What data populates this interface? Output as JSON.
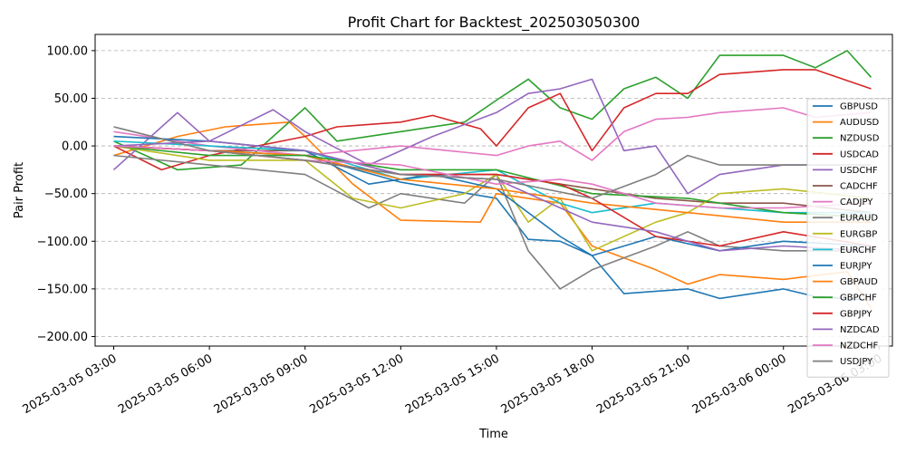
{
  "chart_data": {
    "type": "line",
    "title": "Profit Chart for Backtest_202503050300",
    "xlabel": "Time",
    "ylabel": "Pair Profit",
    "xlim": [
      "2025-03-05 02:25",
      "2025-03-06 03:25"
    ],
    "ylim": [
      -210,
      117
    ],
    "x_ticks": [
      "2025-03-05 03:00",
      "2025-03-05 06:00",
      "2025-03-05 09:00",
      "2025-03-05 12:00",
      "2025-03-05 15:00",
      "2025-03-05 18:00",
      "2025-03-05 21:00",
      "2025-03-06 00:00",
      "2025-03-06 03:00"
    ],
    "x_tick_labels": [
      "2025-03-05 03:00",
      "2025-03-05 06:00",
      "2025-03-05 09:00",
      "2025-03-05 12:00",
      "2025-03-05 15:00",
      "2025-03-05 18:00",
      "2025-03-05 21:00",
      "2025-03-06 00:00",
      "2025-03-06 03:00"
    ],
    "y_ticks": [
      100,
      50,
      0,
      -50,
      -100,
      -150,
      -200
    ],
    "y_tick_labels": [
      "100.00",
      "50.00",
      "0.00",
      "−50.00",
      "−100.00",
      "−150.00",
      "−200.00"
    ],
    "grid": true,
    "legend_position": "right",
    "series": [
      {
        "name": "GBPUSD",
        "color": "#1f77b4",
        "x": [
          "2025-03-05 03:00",
          "2025-03-05 06:00",
          "2025-03-05 09:00",
          "2025-03-05 12:00",
          "2025-03-05 15:00",
          "2025-03-05 16:00",
          "2025-03-05 17:00",
          "2025-03-05 18:00",
          "2025-03-05 19:00",
          "2025-03-05 21:00",
          "2025-03-05 22:00",
          "2025-03-06 00:00",
          "2025-03-06 01:00",
          "2025-03-06 02:45"
        ],
        "values": [
          0,
          -5,
          -10,
          -38,
          -55,
          -98,
          -100,
          -115,
          -155,
          -150,
          -160,
          -150,
          -158,
          -162
        ]
      },
      {
        "name": "AUDUSD",
        "color": "#ff7f0e",
        "x": [
          "2025-03-05 03:00",
          "2025-03-05 05:00",
          "2025-03-05 06:30",
          "2025-03-05 08:30",
          "2025-03-05 09:00",
          "2025-03-05 10:30",
          "2025-03-05 12:00",
          "2025-03-05 14:30",
          "2025-03-05 15:00",
          "2025-03-05 17:00",
          "2025-03-05 18:00",
          "2025-03-05 20:00",
          "2025-03-05 21:00",
          "2025-03-05 22:00",
          "2025-03-06 00:00",
          "2025-03-06 02:00",
          "2025-03-06 02:45"
        ],
        "values": [
          -10,
          10,
          20,
          25,
          10,
          -40,
          -78,
          -80,
          -50,
          -60,
          -105,
          -130,
          -145,
          -135,
          -140,
          -132,
          -170
        ]
      },
      {
        "name": "NZDUSD",
        "color": "#2ca02c",
        "x": [
          "2025-03-05 03:00",
          "2025-03-05 05:00",
          "2025-03-05 07:00",
          "2025-03-05 09:00",
          "2025-03-05 10:00",
          "2025-03-05 12:00",
          "2025-03-05 14:00",
          "2025-03-05 15:00",
          "2025-03-05 16:00",
          "2025-03-05 17:00",
          "2025-03-05 18:00",
          "2025-03-05 19:00",
          "2025-03-05 20:00",
          "2025-03-05 21:00",
          "2025-03-05 22:00",
          "2025-03-06 00:00",
          "2025-03-06 01:00",
          "2025-03-06 02:00",
          "2025-03-06 02:45"
        ],
        "values": [
          5,
          -25,
          -20,
          40,
          5,
          15,
          25,
          48,
          70,
          40,
          28,
          60,
          72,
          50,
          95,
          95,
          82,
          100,
          72
        ]
      },
      {
        "name": "USDCAD",
        "color": "#d62728",
        "x": [
          "2025-03-05 03:00",
          "2025-03-05 04:30",
          "2025-03-05 06:00",
          "2025-03-05 09:00",
          "2025-03-05 10:00",
          "2025-03-05 12:00",
          "2025-03-05 13:00",
          "2025-03-05 14:30",
          "2025-03-05 15:00",
          "2025-03-05 16:00",
          "2025-03-05 17:00",
          "2025-03-05 18:00",
          "2025-03-05 19:00",
          "2025-03-05 20:00",
          "2025-03-05 21:00",
          "2025-03-05 22:00",
          "2025-03-06 00:00",
          "2025-03-06 01:00",
          "2025-03-06 02:45"
        ],
        "values": [
          0,
          -25,
          -10,
          10,
          20,
          25,
          32,
          18,
          0,
          40,
          55,
          -5,
          40,
          55,
          55,
          75,
          80,
          80,
          60
        ]
      },
      {
        "name": "USDCHF",
        "color": "#9467bd",
        "x": [
          "2025-03-05 03:00",
          "2025-03-05 05:00",
          "2025-03-05 06:00",
          "2025-03-05 08:00",
          "2025-03-05 09:00",
          "2025-03-05 11:00",
          "2025-03-05 13:00",
          "2025-03-05 15:00",
          "2025-03-05 16:00",
          "2025-03-05 17:00",
          "2025-03-05 18:00",
          "2025-03-05 19:00",
          "2025-03-05 20:00",
          "2025-03-05 21:00",
          "2025-03-05 22:00",
          "2025-03-06 00:00",
          "2025-03-06 01:00",
          "2025-03-06 02:45"
        ],
        "values": [
          -25,
          35,
          5,
          38,
          15,
          -20,
          10,
          35,
          55,
          60,
          70,
          -5,
          0,
          -50,
          -30,
          -20,
          -20,
          -20
        ]
      },
      {
        "name": "CADCHF",
        "color": "#8c564b",
        "x": [
          "2025-03-05 03:00",
          "2025-03-05 06:00",
          "2025-03-05 09:00",
          "2025-03-05 12:00",
          "2025-03-05 15:00",
          "2025-03-05 18:00",
          "2025-03-05 20:00",
          "2025-03-05 22:00",
          "2025-03-06 00:00",
          "2025-03-06 02:45"
        ],
        "values": [
          0,
          -5,
          -5,
          -30,
          -30,
          -45,
          -55,
          -60,
          -60,
          -70
        ]
      },
      {
        "name": "CADJPY",
        "color": "#e377c2",
        "x": [
          "2025-03-05 03:00",
          "2025-03-05 06:00",
          "2025-03-05 09:00",
          "2025-03-05 12:00",
          "2025-03-05 15:00",
          "2025-03-05 16:00",
          "2025-03-05 17:00",
          "2025-03-05 18:00",
          "2025-03-05 19:00",
          "2025-03-05 20:00",
          "2025-03-05 21:00",
          "2025-03-05 22:00",
          "2025-03-06 00:00",
          "2025-03-06 01:00",
          "2025-03-06 02:45"
        ],
        "values": [
          15,
          0,
          -10,
          0,
          -10,
          0,
          5,
          -15,
          15,
          28,
          30,
          35,
          40,
          30,
          35
        ]
      },
      {
        "name": "EURAUD",
        "color": "#7f7f7f",
        "x": [
          "2025-03-05 03:00",
          "2025-03-05 06:00",
          "2025-03-05 09:00",
          "2025-03-05 11:00",
          "2025-03-05 12:00",
          "2025-03-05 14:00",
          "2025-03-05 15:00",
          "2025-03-05 16:00",
          "2025-03-05 17:00",
          "2025-03-05 18:00",
          "2025-03-05 20:00",
          "2025-03-05 21:00",
          "2025-03-05 22:00",
          "2025-03-06 00:00",
          "2025-03-06 02:45"
        ],
        "values": [
          -10,
          -20,
          -30,
          -65,
          -50,
          -60,
          -30,
          -110,
          -150,
          -130,
          -105,
          -90,
          -105,
          -110,
          -110
        ]
      },
      {
        "name": "EURGBP",
        "color": "#bcbd22",
        "x": [
          "2025-03-05 03:00",
          "2025-03-05 06:00",
          "2025-03-05 09:00",
          "2025-03-05 10:30",
          "2025-03-05 12:00",
          "2025-03-05 14:00",
          "2025-03-05 15:00",
          "2025-03-05 16:00",
          "2025-03-05 17:00",
          "2025-03-05 18:00",
          "2025-03-05 20:00",
          "2025-03-05 21:00",
          "2025-03-05 22:00",
          "2025-03-06 00:00",
          "2025-03-06 02:45"
        ],
        "values": [
          0,
          -15,
          -15,
          -55,
          -65,
          -50,
          -30,
          -80,
          -55,
          -110,
          -80,
          -70,
          -50,
          -45,
          -55
        ]
      },
      {
        "name": "EURCHF",
        "color": "#17becf",
        "x": [
          "2025-03-05 03:00",
          "2025-03-05 06:00",
          "2025-03-05 09:00",
          "2025-03-05 12:00",
          "2025-03-05 15:00",
          "2025-03-05 17:00",
          "2025-03-05 18:00",
          "2025-03-05 20:00",
          "2025-03-05 22:00",
          "2025-03-06 00:00",
          "2025-03-06 02:45"
        ],
        "values": [
          5,
          0,
          -5,
          -35,
          -25,
          -60,
          -70,
          -60,
          -65,
          -70,
          -70
        ]
      },
      {
        "name": "EURJPY",
        "color": "#1f77b4",
        "x": [
          "2025-03-05 03:00",
          "2025-03-05 06:00",
          "2025-03-05 09:00",
          "2025-03-05 11:00",
          "2025-03-05 13:00",
          "2025-03-05 15:00",
          "2025-03-05 17:00",
          "2025-03-05 18:00",
          "2025-03-05 20:00",
          "2025-03-05 22:00",
          "2025-03-06 00:00",
          "2025-03-06 02:45"
        ],
        "values": [
          10,
          5,
          -5,
          -40,
          -30,
          -45,
          -95,
          -115,
          -95,
          -110,
          -100,
          -105
        ]
      },
      {
        "name": "GBPAUD",
        "color": "#ff7f0e",
        "x": [
          "2025-03-05 03:00",
          "2025-03-05 06:00",
          "2025-03-05 09:00",
          "2025-03-05 12:00",
          "2025-03-05 15:00",
          "2025-03-05 18:00",
          "2025-03-05 21:00",
          "2025-03-06 00:00",
          "2025-03-06 02:45"
        ],
        "values": [
          0,
          -5,
          -10,
          -35,
          -45,
          -60,
          -70,
          -80,
          -80
        ]
      },
      {
        "name": "GBPCHF",
        "color": "#2ca02c",
        "x": [
          "2025-03-05 03:00",
          "2025-03-05 06:00",
          "2025-03-05 09:00",
          "2025-03-05 12:00",
          "2025-03-05 15:00",
          "2025-03-05 18:00",
          "2025-03-05 21:00",
          "2025-03-06 00:00",
          "2025-03-06 02:45"
        ],
        "values": [
          0,
          -10,
          -10,
          -25,
          -25,
          -50,
          -55,
          -70,
          -75
        ]
      },
      {
        "name": "GBPJPY",
        "color": "#d62728",
        "x": [
          "2025-03-05 03:00",
          "2025-03-05 06:00",
          "2025-03-05 09:00",
          "2025-03-05 12:00",
          "2025-03-05 15:00",
          "2025-03-05 17:00",
          "2025-03-05 18:00",
          "2025-03-05 20:00",
          "2025-03-05 22:00",
          "2025-03-06 00:00",
          "2025-03-06 02:45"
        ],
        "values": [
          0,
          -5,
          -15,
          -30,
          -30,
          -40,
          -55,
          -95,
          -105,
          -90,
          -105
        ]
      },
      {
        "name": "NZDCAD",
        "color": "#9467bd",
        "x": [
          "2025-03-05 03:00",
          "2025-03-05 06:00",
          "2025-03-05 09:00",
          "2025-03-05 12:00",
          "2025-03-05 15:00",
          "2025-03-05 18:00",
          "2025-03-05 20:00",
          "2025-03-05 22:00",
          "2025-03-06 00:00",
          "2025-03-06 02:45"
        ],
        "values": [
          0,
          5,
          -5,
          -30,
          -35,
          -80,
          -90,
          -110,
          -105,
          -110
        ]
      },
      {
        "name": "NZDCHF",
        "color": "#e377c2",
        "x": [
          "2025-03-05 03:00",
          "2025-03-05 06:00",
          "2025-03-05 09:00",
          "2025-03-05 12:00",
          "2025-03-05 15:00",
          "2025-03-05 17:00",
          "2025-03-05 18:00",
          "2025-03-05 20:00",
          "2025-03-05 22:00",
          "2025-03-06 00:00",
          "2025-03-06 02:45"
        ],
        "values": [
          0,
          -5,
          -15,
          -20,
          -40,
          -35,
          -40,
          -60,
          -65,
          -65,
          -60
        ]
      },
      {
        "name": "USDJPY",
        "color": "#7f7f7f",
        "x": [
          "2025-03-05 03:00",
          "2025-03-05 06:00",
          "2025-03-05 09:00",
          "2025-03-05 12:00",
          "2025-03-05 15:00",
          "2025-03-05 18:00",
          "2025-03-05 20:00",
          "2025-03-05 21:00",
          "2025-03-05 22:00",
          "2025-03-06 00:00",
          "2025-03-06 02:45"
        ],
        "values": [
          20,
          -5,
          -15,
          -30,
          -35,
          -55,
          -30,
          -10,
          -20,
          -20,
          -20
        ]
      }
    ]
  }
}
